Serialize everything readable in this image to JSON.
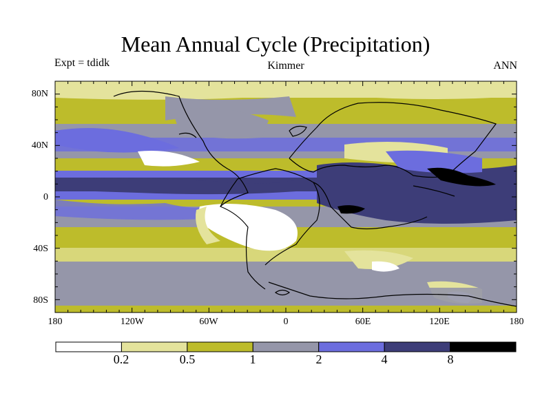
{
  "title": "Mean Annual Cycle (Precipitation)",
  "experiment_label": "Expt = tdidk",
  "model_label": "Kimmer",
  "period_label": "ANN",
  "map": {
    "projection": "cylindrical-equidistant",
    "lon_range": [
      -180,
      180
    ],
    "lat_range": [
      -90,
      90
    ],
    "x_tick_labels": [
      "180",
      "120W",
      "60W",
      "0",
      "60E",
      "120E",
      "180"
    ],
    "y_tick_labels": [
      "80N",
      "40N",
      "0",
      "40S",
      "80S"
    ],
    "y_tick_values": [
      80,
      40,
      0,
      -40,
      -80
    ]
  },
  "colorbar": {
    "levels": [
      "0.2",
      "0.5",
      "1",
      "2",
      "4",
      "8"
    ],
    "colors": [
      "#ffffff",
      "#e4e39c",
      "#bdbc2b",
      "#9596a9",
      "#6c6dde",
      "#3d3d78",
      "#000000"
    ]
  }
}
